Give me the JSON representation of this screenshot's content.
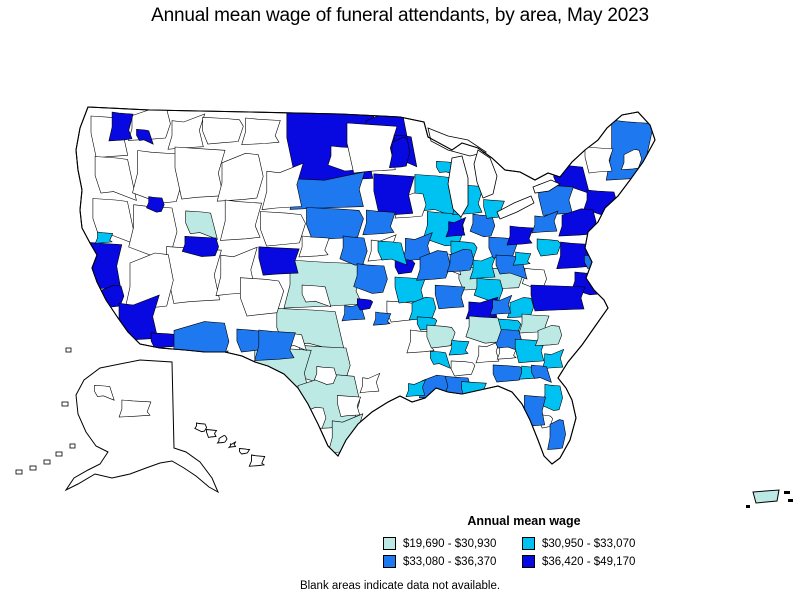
{
  "title": "Annual mean wage of funeral attendants, by area, May 2023",
  "legend": {
    "title": "Annual mean wage",
    "classes": [
      {
        "label": "$19,690 - $30,930",
        "color": "#bce9e4"
      },
      {
        "label": "$30,950 - $33,070",
        "color": "#00c2f2"
      },
      {
        "label": "$33,080 - $36,370",
        "color": "#1e78f0"
      },
      {
        "label": "$36,420 - $49,170",
        "color": "#0808e0"
      }
    ]
  },
  "note": "Blank areas indicate data not available.",
  "chart_data": {
    "type": "heatmap",
    "subtype": "choropleth-us-map",
    "title": "Annual mean wage of funeral attendants, by area, May 2023",
    "legend_title": "Annual mean wage",
    "unit": "USD per year, annual mean wage",
    "overall_range": [
      19690,
      49170
    ],
    "bins": [
      {
        "label": "$19,690 - $30,930",
        "min": 19690,
        "max": 30930,
        "color": "#bce9e4"
      },
      {
        "label": "$30,950 - $33,070",
        "min": 30950,
        "max": 33070,
        "color": "#00c2f2"
      },
      {
        "label": "$33,080 - $36,370",
        "min": 33080,
        "max": 36370,
        "color": "#1e78f0"
      },
      {
        "label": "$36,420 - $49,170",
        "min": 36420,
        "max": 49170,
        "color": "#0808e0"
      }
    ],
    "legend_position": "bottom",
    "note": "Blank areas indicate data not available.",
    "map_regions_shown": [
      "contiguous United States",
      "Alaska",
      "Hawaii",
      "Puerto Rico"
    ],
    "blank_fill": "#ffffff"
  }
}
